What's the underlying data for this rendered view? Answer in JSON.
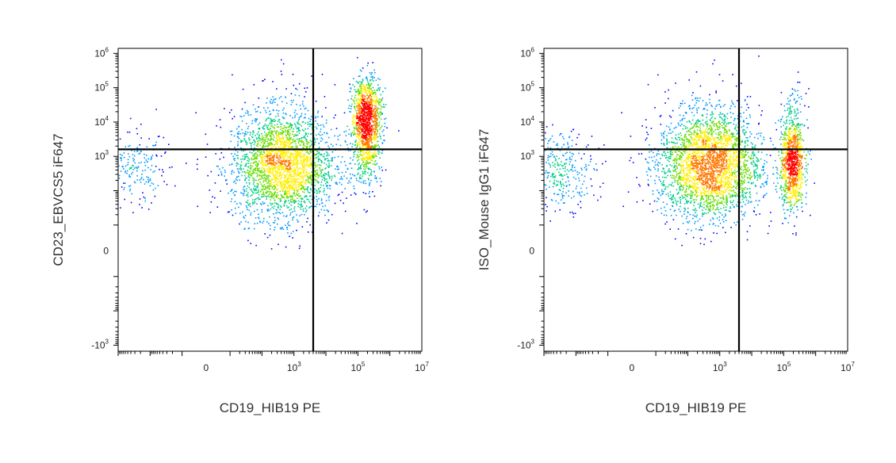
{
  "chart_data": [
    {
      "type": "scatter",
      "subtype": "flow-cytometry-density-dot-plot",
      "xlabel": "CD19_HIB19 PE",
      "ylabel": "CD23_EBVCS5 iF647",
      "x_scale": "biexponential",
      "y_scale": "biexponential",
      "xlim": [
        -1000,
        10000000
      ],
      "ylim": [
        -1500,
        1400000
      ],
      "x_ticks": [
        {
          "value": 0,
          "base": "0",
          "exp": ""
        },
        {
          "value": 1000,
          "base": "10",
          "exp": "3"
        },
        {
          "value": 100000,
          "base": "10",
          "exp": "5"
        },
        {
          "value": 10000000,
          "base": "10",
          "exp": "7"
        }
      ],
      "y_ticks": [
        {
          "value": -1000,
          "base": "-10",
          "exp": "3"
        },
        {
          "value": 0,
          "base": "0",
          "exp": ""
        },
        {
          "value": 1000,
          "base": "10",
          "exp": "3"
        },
        {
          "value": 10000,
          "base": "10",
          "exp": "4"
        },
        {
          "value": 100000,
          "base": "10",
          "exp": "5"
        },
        {
          "value": 1000000,
          "base": "10",
          "exp": "6"
        }
      ],
      "quadrant_gate": {
        "x": 4000,
        "y": 1600
      },
      "populations": [
        {
          "x_center": 450,
          "y_center": 500,
          "x_spread": 0.45,
          "y_spread": 0.42,
          "weight": 0.58
        },
        {
          "x_center": 180000,
          "y_center": 18000,
          "x_spread": 0.13,
          "y_spread": 0.3,
          "weight": 0.22
        },
        {
          "x_center": 180000,
          "y_center": 1800,
          "x_spread": 0.13,
          "y_spread": 0.3,
          "weight": 0.1
        },
        {
          "x_center": 500,
          "y_center": 5000,
          "x_spread": 0.35,
          "y_spread": 0.45,
          "weight": 0.05
        },
        {
          "x_center": -300,
          "y_center": 400,
          "x_spread": 0.3,
          "y_spread": 0.3,
          "weight": 0.05
        }
      ],
      "color_scale": [
        "#0000ff",
        "#0099ff",
        "#00cc88",
        "#66dd00",
        "#ffee00",
        "#ff7700",
        "#ff0000"
      ],
      "grid": false,
      "legend": "none"
    },
    {
      "type": "scatter",
      "subtype": "flow-cytometry-density-dot-plot",
      "xlabel": "CD19_HIB19 PE",
      "ylabel": "ISO_Mouse IgG1 iF647",
      "x_scale": "biexponential",
      "y_scale": "biexponential",
      "xlim": [
        -1000,
        10000000
      ],
      "ylim": [
        -1500,
        1400000
      ],
      "x_ticks": [
        {
          "value": 0,
          "base": "0",
          "exp": ""
        },
        {
          "value": 1000,
          "base": "10",
          "exp": "3"
        },
        {
          "value": 100000,
          "base": "10",
          "exp": "5"
        },
        {
          "value": 10000000,
          "base": "10",
          "exp": "7"
        }
      ],
      "y_ticks": [
        {
          "value": -1000,
          "base": "-10",
          "exp": "3"
        },
        {
          "value": 0,
          "base": "0",
          "exp": ""
        },
        {
          "value": 1000,
          "base": "10",
          "exp": "3"
        },
        {
          "value": 10000,
          "base": "10",
          "exp": "4"
        },
        {
          "value": 100000,
          "base": "10",
          "exp": "5"
        },
        {
          "value": 1000000,
          "base": "10",
          "exp": "6"
        }
      ],
      "quadrant_gate": {
        "x": 4000,
        "y": 1600
      },
      "populations": [
        {
          "x_center": 450,
          "y_center": 500,
          "x_spread": 0.45,
          "y_spread": 0.42,
          "weight": 0.62
        },
        {
          "x_center": 180000,
          "y_center": 500,
          "x_spread": 0.1,
          "y_spread": 0.35,
          "weight": 0.18
        },
        {
          "x_center": 180000,
          "y_center": 3000,
          "x_spread": 0.12,
          "y_spread": 0.4,
          "weight": 0.06
        },
        {
          "x_center": 500,
          "y_center": 4000,
          "x_spread": 0.35,
          "y_spread": 0.45,
          "weight": 0.06
        },
        {
          "x_center": -300,
          "y_center": 400,
          "x_spread": 0.3,
          "y_spread": 0.3,
          "weight": 0.08
        }
      ],
      "color_scale": [
        "#0000ff",
        "#0099ff",
        "#00cc88",
        "#66dd00",
        "#ffee00",
        "#ff7700",
        "#ff0000"
      ],
      "grid": false,
      "legend": "none"
    }
  ]
}
